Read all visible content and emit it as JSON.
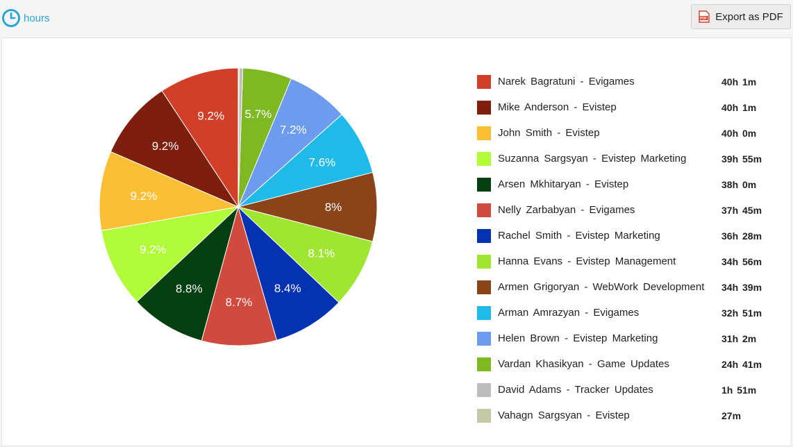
{
  "header": {
    "hours_label": "hours",
    "export_label": "Export as PDF",
    "pdf_icon_text": "PDF",
    "accent_color": "#2aa5d6"
  },
  "chart_data": {
    "type": "pie",
    "categories": [
      "Narek Bagratuni - Evigames",
      "Mike Anderson - Evistep",
      "John Smith - Evistep",
      "Suzanna Sargsyan - Evistep Marketing",
      "Arsen Mkhitaryan - Evistep",
      "Nelly Zarbabyan - Evigames",
      "Rachel Smith - Evistep Marketing",
      "Hanna Evans - Evistep Management",
      "Armen Grigoryan - WebWork Development",
      "Arman Amrazyan - Evigames",
      "Helen Brown - Evistep Marketing",
      "Vardan Khasikyan - Game Updates",
      "David Adams - Tracker Updates",
      "Vahagn Sargsyan - Evistep"
    ],
    "values": [
      2401,
      2401,
      2400,
      2395,
      2280,
      2265,
      2188,
      2096,
      2079,
      1971,
      1862,
      1481,
      111,
      27
    ],
    "value_labels": [
      "40h 1m",
      "40h 1m",
      "40h 0m",
      "39h 55m",
      "38h 0m",
      "37h 45m",
      "36h 28m",
      "34h 56m",
      "34h 39m",
      "32h 51m",
      "31h 2m",
      "24h 41m",
      "1h 51m",
      "27m"
    ],
    "percent_labels": [
      "9.2%",
      "9.2%",
      "9.2%",
      "9.2%",
      "8.8%",
      "8.7%",
      "8.4%",
      "8.1%",
      "8%",
      "7.6%",
      "7.2%",
      "5.7%",
      "",
      ""
    ],
    "colors": [
      "#d23f28",
      "#7e1f0e",
      "#fbbf36",
      "#b0fc38",
      "#04400f",
      "#d14a3e",
      "#0432b2",
      "#a1e533",
      "#8b4419",
      "#1fbae8",
      "#6d9cef",
      "#7eb822",
      "#bebebe",
      "#c4c8a5"
    ],
    "legend_position": "right"
  }
}
